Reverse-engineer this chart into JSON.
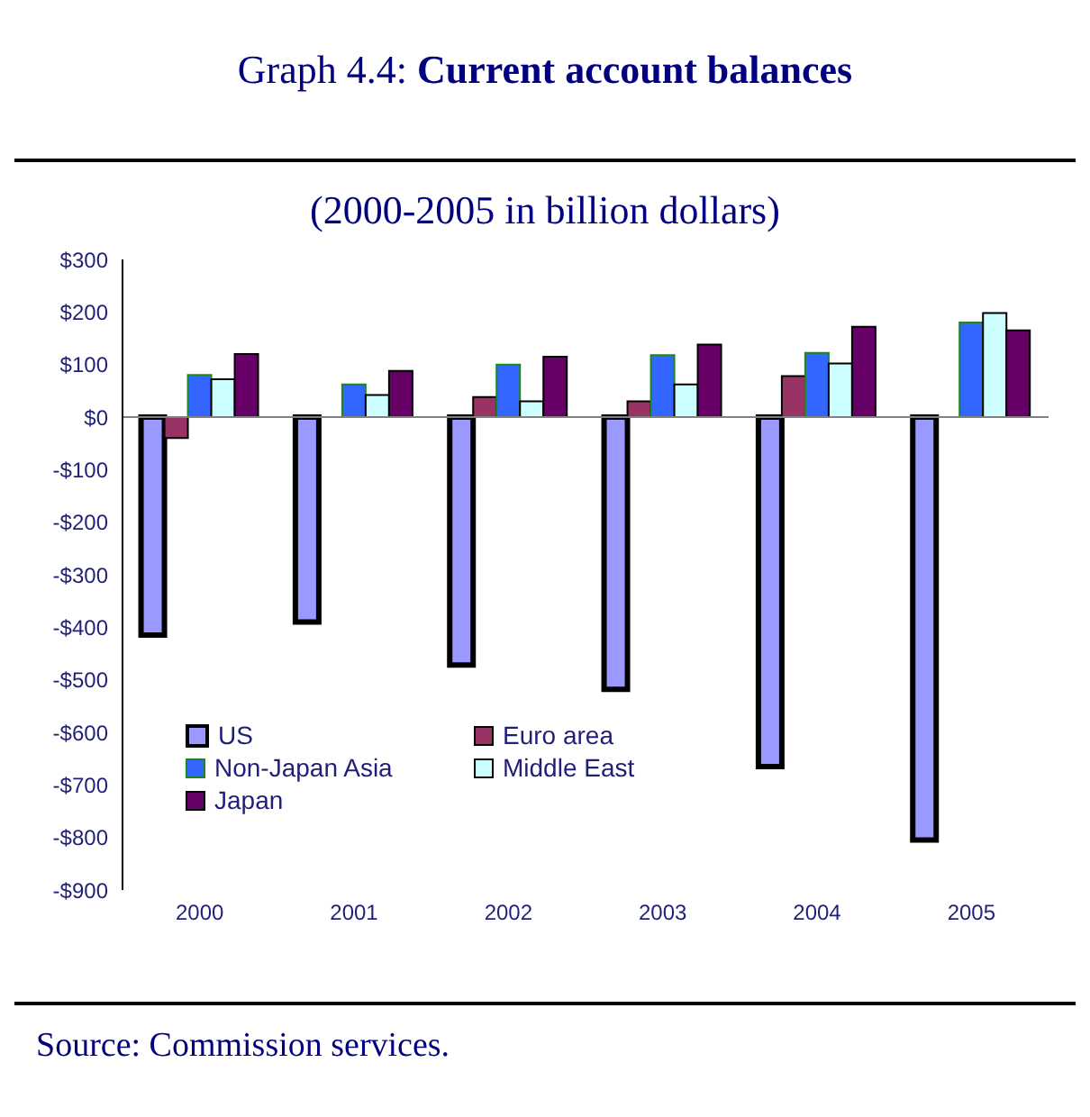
{
  "chart_data": {
    "type": "bar",
    "title": "Graph 4.4: Current account balances",
    "subtitle": "(2000-2005 in billion dollars)",
    "categories": [
      "2000",
      "2001",
      "2002",
      "2003",
      "2004",
      "2005"
    ],
    "series": [
      {
        "name": "US",
        "color": "#9999ff",
        "values": [
          -415,
          -390,
          -472,
          -518,
          -665,
          -805
        ]
      },
      {
        "name": "Euro area",
        "color": "#993366",
        "values": [
          -40,
          0,
          38,
          30,
          78,
          null
        ]
      },
      {
        "name": "Non-Japan Asia",
        "color": "#3366ff",
        "values": [
          80,
          62,
          100,
          118,
          122,
          180
        ]
      },
      {
        "name": "Middle East",
        "color": "#ccffff",
        "values": [
          72,
          42,
          30,
          62,
          102,
          198
        ]
      },
      {
        "name": "Japan",
        "color": "#660066",
        "values": [
          120,
          88,
          115,
          138,
          172,
          165
        ]
      }
    ],
    "ylim": [
      -900,
      300
    ],
    "yticks": [
      {
        "value": -900,
        "label": "-$900"
      },
      {
        "value": -800,
        "label": "-$800"
      },
      {
        "value": -700,
        "label": "-$700"
      },
      {
        "value": -600,
        "label": "-$600"
      },
      {
        "value": -500,
        "label": "-$500"
      },
      {
        "value": -400,
        "label": "-$400"
      },
      {
        "value": -300,
        "label": "-$300"
      },
      {
        "value": -200,
        "label": "-$200"
      },
      {
        "value": -100,
        "label": "-$100"
      },
      {
        "value": 0,
        "label": "$0"
      },
      {
        "value": 100,
        "label": "$100"
      },
      {
        "value": 200,
        "label": "$200"
      },
      {
        "value": 300,
        "label": "$300"
      }
    ],
    "ref_lines": [
      {
        "axis": "y",
        "value": 0,
        "color": "#808080"
      }
    ],
    "grid": false,
    "legend": "bottom left",
    "annotations": [
      "Source: Commission services."
    ]
  }
}
